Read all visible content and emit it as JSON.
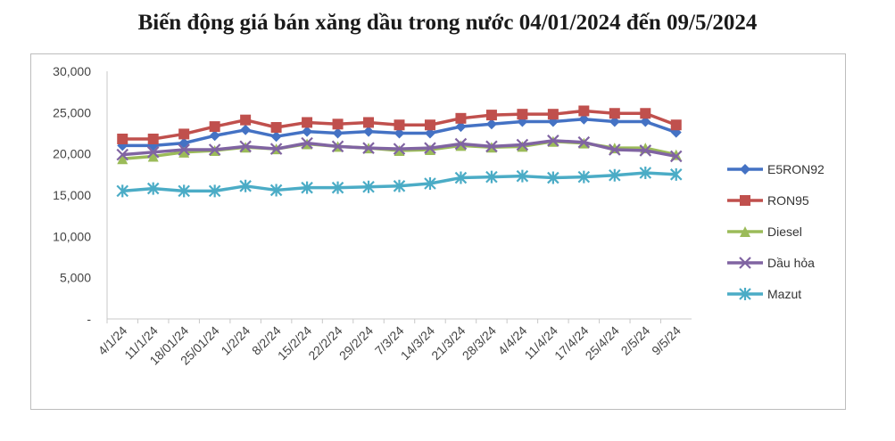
{
  "chart_data": {
    "type": "line",
    "title": "Biến động giá bán xăng dầu trong nước 04/01/2024 đến 09/5/2024",
    "xlabel": "",
    "ylabel": "",
    "categories": [
      "4/1/24",
      "11/1/24",
      "18/01/24",
      "25/01/24",
      "1/2/24",
      "8/2/24",
      "15/2/24",
      "22/2/24",
      "29/2/24",
      "7/3/24",
      "14/3/24",
      "21/3/24",
      "28/3/24",
      "4/4/24",
      "11/4/24",
      "17/4/24",
      "25/4/24",
      "2/5/24",
      "9/5/24"
    ],
    "y_ticks": [
      "-",
      "5,000",
      "10,000",
      "15,000",
      "20,000",
      "25,000",
      "30,000"
    ],
    "ylim": [
      0,
      30000
    ],
    "grid": false,
    "legend_position": "right",
    "series": [
      {
        "name": "E5RON92",
        "color": "#4472C4",
        "marker": "diamond",
        "values": [
          21000,
          21000,
          21300,
          22200,
          22900,
          22100,
          22700,
          22500,
          22700,
          22500,
          22500,
          23300,
          23600,
          23900,
          23900,
          24200,
          23900,
          23900,
          22600
        ]
      },
      {
        "name": "RON95",
        "color": "#C0504D",
        "marker": "square",
        "values": [
          21800,
          21800,
          22400,
          23300,
          24100,
          23200,
          23800,
          23600,
          23800,
          23500,
          23500,
          24300,
          24700,
          24800,
          24800,
          25200,
          24900,
          24900,
          23500
        ]
      },
      {
        "name": "Diesel",
        "color": "#9BBB59",
        "marker": "triangle",
        "values": [
          19400,
          19700,
          20200,
          20400,
          20800,
          20600,
          21200,
          20900,
          20700,
          20400,
          20500,
          21000,
          20800,
          20900,
          21500,
          21300,
          20700,
          20700,
          19900
        ]
      },
      {
        "name": "Dầu hỏa",
        "color": "#8064A2",
        "marker": "x",
        "values": [
          19900,
          20200,
          20500,
          20500,
          20900,
          20600,
          21300,
          20900,
          20700,
          20600,
          20700,
          21200,
          20900,
          21100,
          21600,
          21400,
          20500,
          20400,
          19700
        ]
      },
      {
        "name": "Mazut",
        "color": "#4BACC6",
        "marker": "star",
        "values": [
          15500,
          15800,
          15500,
          15500,
          16100,
          15600,
          15900,
          15900,
          16000,
          16100,
          16400,
          17100,
          17200,
          17300,
          17100,
          17200,
          17400,
          17700,
          17500
        ]
      }
    ]
  }
}
